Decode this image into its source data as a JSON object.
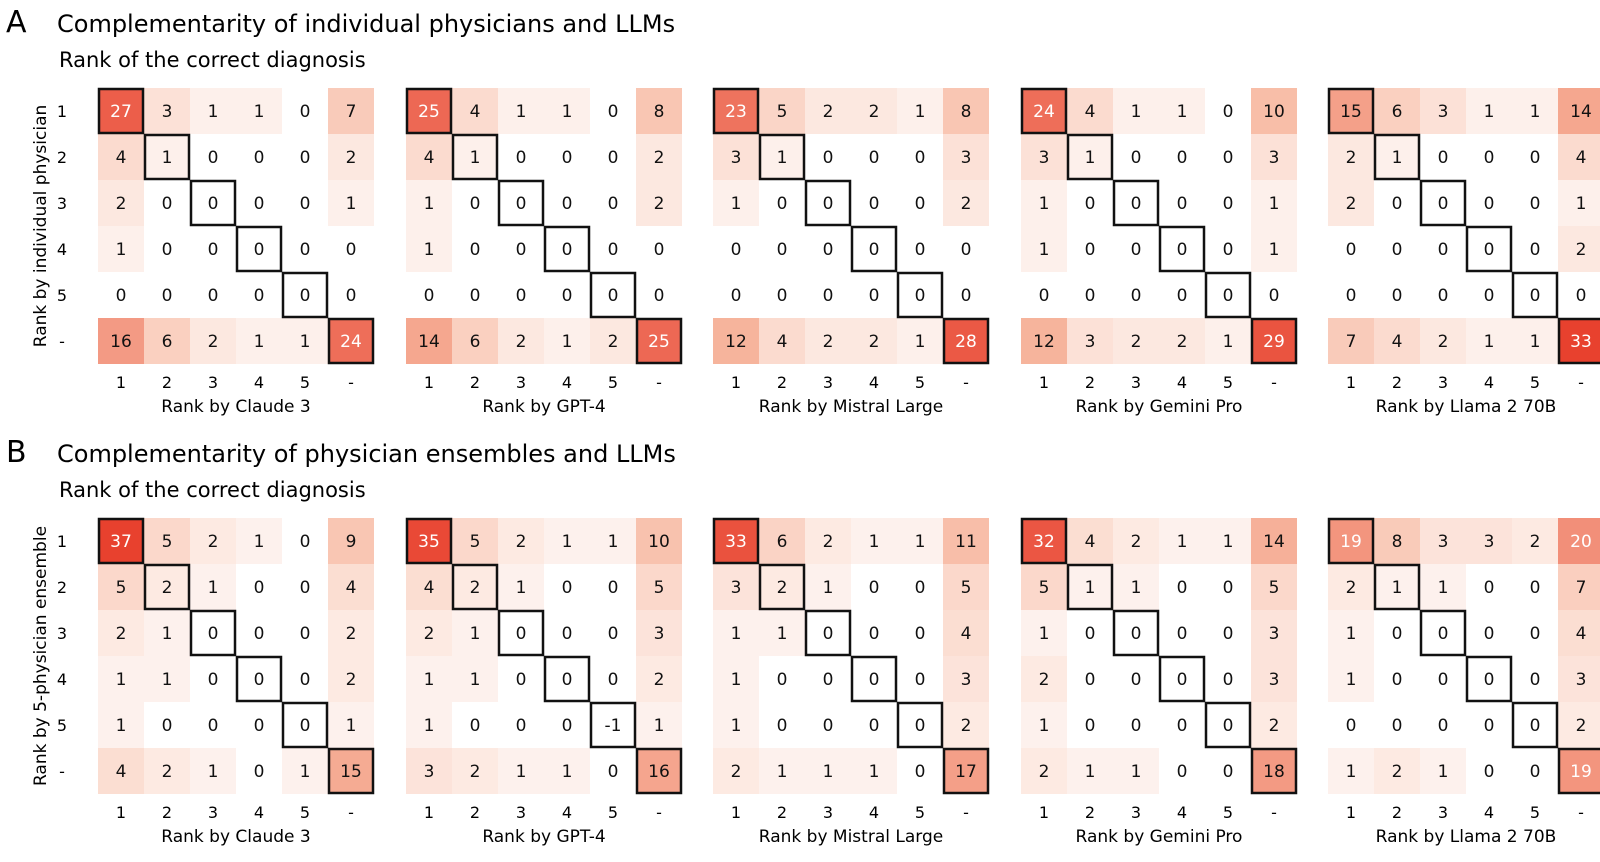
{
  "chart_data": {
    "type": "heatmap",
    "tick_labels": [
      "1",
      "2",
      "3",
      "4",
      "5",
      "-"
    ],
    "panels": [
      {
        "letter": "A",
        "title": "Complementarity of individual physicians and LLMs",
        "subtitle": "Rank of the correct diagnosis",
        "ylabel": "Rank by individual physician",
        "heatmaps": [
          {
            "xlabel": "Rank by Claude 3",
            "values": [
              [
                27,
                3,
                1,
                1,
                0,
                7
              ],
              [
                4,
                1,
                0,
                0,
                0,
                2
              ],
              [
                2,
                0,
                0,
                0,
                0,
                1
              ],
              [
                1,
                0,
                0,
                0,
                0,
                0
              ],
              [
                0,
                0,
                0,
                0,
                0,
                0
              ],
              [
                16,
                6,
                2,
                1,
                1,
                24
              ]
            ]
          },
          {
            "xlabel": "Rank by GPT-4",
            "values": [
              [
                25,
                4,
                1,
                1,
                0,
                8
              ],
              [
                4,
                1,
                0,
                0,
                0,
                2
              ],
              [
                1,
                0,
                0,
                0,
                0,
                2
              ],
              [
                1,
                0,
                0,
                0,
                0,
                0
              ],
              [
                0,
                0,
                0,
                0,
                0,
                0
              ],
              [
                14,
                6,
                2,
                1,
                2,
                25
              ]
            ]
          },
          {
            "xlabel": "Rank by Mistral Large",
            "values": [
              [
                23,
                5,
                2,
                2,
                1,
                8
              ],
              [
                3,
                1,
                0,
                0,
                0,
                3
              ],
              [
                1,
                0,
                0,
                0,
                0,
                2
              ],
              [
                0,
                0,
                0,
                0,
                0,
                0
              ],
              [
                0,
                0,
                0,
                0,
                0,
                0
              ],
              [
                12,
                4,
                2,
                2,
                1,
                28
              ]
            ]
          },
          {
            "xlabel": "Rank by Gemini Pro",
            "values": [
              [
                24,
                4,
                1,
                1,
                0,
                10
              ],
              [
                3,
                1,
                0,
                0,
                0,
                3
              ],
              [
                1,
                0,
                0,
                0,
                0,
                1
              ],
              [
                1,
                0,
                0,
                0,
                0,
                1
              ],
              [
                0,
                0,
                0,
                0,
                0,
                0
              ],
              [
                12,
                3,
                2,
                2,
                1,
                29
              ]
            ]
          },
          {
            "xlabel": "Rank by Llama 2 70B",
            "values": [
              [
                15,
                6,
                3,
                1,
                1,
                14
              ],
              [
                2,
                1,
                0,
                0,
                0,
                4
              ],
              [
                2,
                0,
                0,
                0,
                0,
                1
              ],
              [
                0,
                0,
                0,
                0,
                0,
                2
              ],
              [
                0,
                0,
                0,
                0,
                0,
                0
              ],
              [
                7,
                4,
                2,
                1,
                1,
                33
              ]
            ]
          }
        ]
      },
      {
        "letter": "B",
        "title": "Complementarity of physician ensembles and LLMs",
        "subtitle": "Rank of the correct diagnosis",
        "ylabel": "Rank by 5-physician ensemble",
        "heatmaps": [
          {
            "xlabel": "Rank by Claude 3",
            "values": [
              [
                37,
                5,
                2,
                1,
                0,
                9
              ],
              [
                5,
                2,
                1,
                0,
                0,
                4
              ],
              [
                2,
                1,
                0,
                0,
                0,
                2
              ],
              [
                1,
                1,
                0,
                0,
                0,
                2
              ],
              [
                1,
                0,
                0,
                0,
                0,
                1
              ],
              [
                4,
                2,
                1,
                0,
                1,
                15
              ]
            ]
          },
          {
            "xlabel": "Rank by GPT-4",
            "values": [
              [
                35,
                5,
                2,
                1,
                1,
                10
              ],
              [
                4,
                2,
                1,
                0,
                0,
                5
              ],
              [
                2,
                1,
                0,
                0,
                0,
                3
              ],
              [
                1,
                1,
                0,
                0,
                0,
                2
              ],
              [
                1,
                0,
                0,
                0,
                -1,
                1
              ],
              [
                3,
                2,
                1,
                1,
                0,
                16
              ]
            ]
          },
          {
            "xlabel": "Rank by Mistral Large",
            "values": [
              [
                33,
                6,
                2,
                1,
                1,
                11
              ],
              [
                3,
                2,
                1,
                0,
                0,
                5
              ],
              [
                1,
                1,
                0,
                0,
                0,
                4
              ],
              [
                1,
                0,
                0,
                0,
                0,
                3
              ],
              [
                1,
                0,
                0,
                0,
                0,
                2
              ],
              [
                2,
                1,
                1,
                1,
                0,
                17
              ]
            ]
          },
          {
            "xlabel": "Rank by Gemini Pro",
            "values": [
              [
                32,
                4,
                2,
                1,
                1,
                14
              ],
              [
                5,
                1,
                1,
                0,
                0,
                5
              ],
              [
                1,
                0,
                0,
                0,
                0,
                3
              ],
              [
                2,
                0,
                0,
                0,
                0,
                3
              ],
              [
                1,
                0,
                0,
                0,
                0,
                2
              ],
              [
                2,
                1,
                1,
                0,
                0,
                18
              ]
            ]
          },
          {
            "xlabel": "Rank by Llama 2 70B",
            "values": [
              [
                19,
                8,
                3,
                3,
                2,
                20
              ],
              [
                2,
                1,
                1,
                0,
                0,
                7
              ],
              [
                1,
                0,
                0,
                0,
                0,
                4
              ],
              [
                1,
                0,
                0,
                0,
                0,
                3
              ],
              [
                0,
                0,
                0,
                0,
                0,
                2
              ],
              [
                1,
                2,
                1,
                0,
                0,
                19
              ]
            ]
          }
        ]
      }
    ],
    "colormap": {
      "low": "#ffffff",
      "mid": "#f7b8a0",
      "high": "#e8412e"
    },
    "highlighted_cells": "diagonal staircase and bottom-right corner"
  }
}
